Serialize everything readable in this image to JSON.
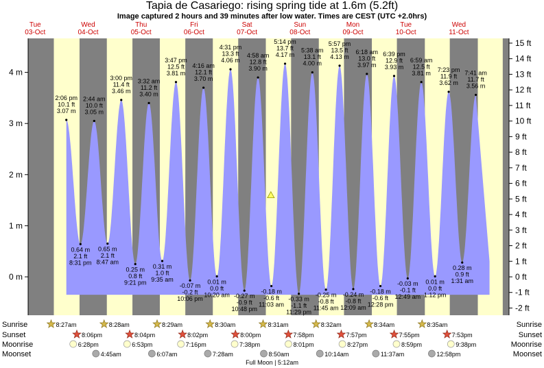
{
  "title": "Tapia de Casariego: rising  spring tide at 1.6m (5.2ft)",
  "subtitle": "Image captured 2 hours and 39 minutes after low water. Times are CEST (UTC +2.0hrs)",
  "moon_phase": "Full Moon | 5:12am",
  "colors": {
    "night": "#808080",
    "day": "#ffffcc",
    "tide_fill": "#9999ff",
    "day_label": "#cc0000",
    "marker": "#ffff66"
  },
  "current_level": {
    "day": 4.45,
    "height_m": 1.6
  },
  "chart_data": {
    "type": "area",
    "ylabel_left_unit": "m",
    "ylabel_right_unit": "ft",
    "ylim": [
      -0.75,
      4.75
    ],
    "y_ticks_m": [
      0,
      1,
      2,
      3,
      4
    ],
    "y_ticks_ft": [
      -2,
      -1,
      0,
      1,
      2,
      3,
      4,
      5,
      6,
      7,
      8,
      9,
      10,
      11,
      12,
      13,
      14,
      15
    ],
    "days": [
      {
        "dow": "Tue",
        "date": "03-Oct"
      },
      {
        "dow": "Wed",
        "date": "04-Oct"
      },
      {
        "dow": "Thu",
        "date": "05-Oct"
      },
      {
        "dow": "Fri",
        "date": "06-Oct"
      },
      {
        "dow": "Sat",
        "date": "07-Oct"
      },
      {
        "dow": "Sun",
        "date": "08-Oct"
      },
      {
        "dow": "Mon",
        "date": "09-Oct"
      },
      {
        "dow": "Tue",
        "date": "10-Oct"
      },
      {
        "dow": "Wed",
        "date": "11-Oct"
      }
    ],
    "tides": [
      {
        "type": "high",
        "t": 0.588,
        "time": "2:06 pm",
        "ft": "10.1 ft",
        "m": 3.07,
        "m_label": "3.07 m"
      },
      {
        "type": "low",
        "t": 0.855,
        "time": "8:31 pm",
        "ft": "2.1 ft",
        "m": 0.64,
        "m_label": "0.64 m"
      },
      {
        "type": "high",
        "t": 1.114,
        "time": "2:44 am",
        "ft": "10.0 ft",
        "m": 3.05,
        "m_label": "3.05 m"
      },
      {
        "type": "low",
        "t": 1.366,
        "time": "8:47 am",
        "ft": "2.1 ft",
        "m": 0.65,
        "m_label": "0.65 m"
      },
      {
        "type": "high",
        "t": 1.625,
        "time": "3:00 pm",
        "ft": "11.4 ft",
        "m": 3.46,
        "m_label": "3.46 m"
      },
      {
        "type": "low",
        "t": 1.89,
        "time": "9:21 pm",
        "ft": "0.8 ft",
        "m": 0.25,
        "m_label": "0.25 m"
      },
      {
        "type": "high",
        "t": 2.147,
        "time": "3:32 am",
        "ft": "11.2 ft",
        "m": 3.4,
        "m_label": "3.40 m"
      },
      {
        "type": "low",
        "t": 2.399,
        "time": "9:35 am",
        "ft": "1.0 ft",
        "m": 0.31,
        "m_label": "0.31 m"
      },
      {
        "type": "high",
        "t": 2.658,
        "time": "3:47 pm",
        "ft": "12.5 ft",
        "m": 3.81,
        "m_label": "3.81 m"
      },
      {
        "type": "low",
        "t": 2.924,
        "time": "10:06 pm",
        "ft": "-0.2 ft",
        "m": -0.07,
        "m_label": "-0.07 m"
      },
      {
        "type": "high",
        "t": 3.178,
        "time": "4:16 am",
        "ft": "12.1 ft",
        "m": 3.7,
        "m_label": "3.70 m"
      },
      {
        "type": "low",
        "t": 3.431,
        "time": "10:20 am",
        "ft": "0.0 ft",
        "m": 0.01,
        "m_label": "0.01 m"
      },
      {
        "type": "high",
        "t": 3.688,
        "time": "4:31 pm",
        "ft": "13.3 ft",
        "m": 4.06,
        "m_label": "4.06 m"
      },
      {
        "type": "low",
        "t": 3.95,
        "time": "10:48 pm",
        "ft": "-0.9 ft",
        "m": -0.27,
        "m_label": "-0.27 m"
      },
      {
        "type": "high",
        "t": 4.207,
        "time": "4:58 am",
        "ft": "12.8 ft",
        "m": 3.9,
        "m_label": "3.90 m"
      },
      {
        "type": "low",
        "t": 4.46,
        "time": "11:03 am",
        "ft": "-0.6 ft",
        "m": -0.18,
        "m_label": "-0.18 m"
      },
      {
        "type": "high",
        "t": 4.718,
        "time": "5:14 pm",
        "ft": "13.7 ft",
        "m": 4.17,
        "m_label": "4.17 m"
      },
      {
        "type": "low",
        "t": 4.978,
        "time": "11:29 pm",
        "ft": "-1.1 ft",
        "m": -0.33,
        "m_label": "-0.33 m"
      },
      {
        "type": "high",
        "t": 5.233,
        "time": "5:38 am",
        "ft": "13.1 ft",
        "m": 4.0,
        "m_label": "4.00 m"
      },
      {
        "type": "low",
        "t": 5.49,
        "time": "11:45 am",
        "ft": "-0.8 ft",
        "m": -0.25,
        "m_label": "-0.25 m"
      },
      {
        "type": "high",
        "t": 5.748,
        "time": "5:57 pm",
        "ft": "13.5 ft",
        "m": 4.13,
        "m_label": "4.13 m"
      },
      {
        "type": "low",
        "t": 6.006,
        "time": "12:09 am",
        "ft": "-0.8 ft",
        "m": -0.24,
        "m_label": "-0.24 m"
      },
      {
        "type": "high",
        "t": 6.263,
        "time": "6:18 am",
        "ft": "13.0 ft",
        "m": 3.97,
        "m_label": "3.97 m"
      },
      {
        "type": "low",
        "t": 6.519,
        "time": "12:28 pm",
        "ft": "-0.6 ft",
        "m": -0.18,
        "m_label": "-0.18 m"
      },
      {
        "type": "high",
        "t": 6.777,
        "time": "6:39 pm",
        "ft": "12.9 ft",
        "m": 3.93,
        "m_label": "3.93 m"
      },
      {
        "type": "low",
        "t": 7.034,
        "time": "12:49 am",
        "ft": "-0.1 ft",
        "m": -0.03,
        "m_label": "-0.03 m"
      },
      {
        "type": "high",
        "t": 7.291,
        "time": "6:59 am",
        "ft": "12.5 ft",
        "m": 3.81,
        "m_label": "3.81 m"
      },
      {
        "type": "low",
        "t": 7.55,
        "time": "1:12 pm",
        "ft": "0.0 ft",
        "m": 0.01,
        "m_label": "0.01 m"
      },
      {
        "type": "high",
        "t": 7.808,
        "time": "7:23 pm",
        "ft": "11.9 ft",
        "m": 3.62,
        "m_label": "3.62 m"
      },
      {
        "type": "low",
        "t": 8.063,
        "time": "1:31 am",
        "ft": "0.9 ft",
        "m": 0.28,
        "m_label": "0.28 m"
      },
      {
        "type": "high",
        "t": 8.32,
        "time": "7:41 am",
        "ft": "11.7 ft",
        "m": 3.56,
        "m_label": "3.56 m"
      }
    ],
    "sunrise": [
      "8:27am",
      "8:28am",
      "8:29am",
      "8:30am",
      "8:31am",
      "8:32am",
      "8:34am",
      "8:35am"
    ],
    "sunset": [
      "8:06pm",
      "8:04pm",
      "8:02pm",
      "8:00pm",
      "7:58pm",
      "7:57pm",
      "7:55pm",
      "7:53pm"
    ],
    "moonrise": [
      "6:28pm",
      "6:53pm",
      "7:16pm",
      "7:38pm",
      "8:01pm",
      "8:27pm",
      "8:59pm",
      "9:38pm"
    ],
    "moonset": [
      "4:45am",
      "6:07am",
      "7:28am",
      "8:50am",
      "10:14am",
      "11:37am",
      "12:58pm"
    ],
    "row_labels": {
      "sunrise": "Sunrise",
      "sunset": "Sunset",
      "moonrise": "Moonrise",
      "moonset": "Moonset"
    }
  }
}
